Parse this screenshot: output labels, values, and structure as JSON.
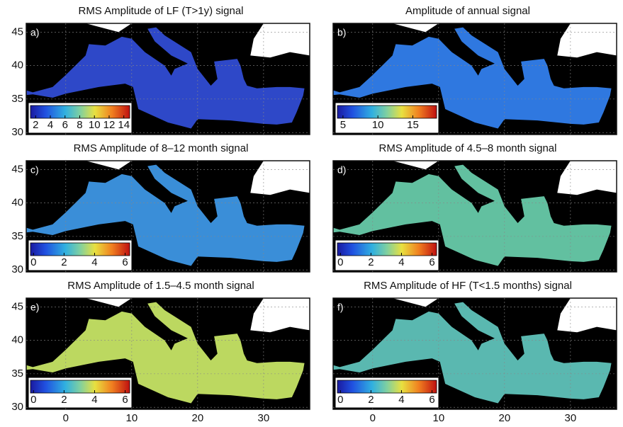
{
  "panels": [
    {
      "label": "a)",
      "title": "RMS Amplitude of LF (T>1y) signal",
      "color": "#2e48c8",
      "colorbar": {
        "lim": [
          1.3,
          14.8
        ],
        "ticks": [
          2,
          4,
          6,
          8,
          10,
          12,
          14
        ]
      }
    },
    {
      "label": "b)",
      "title": "Amplitude of annual signal",
      "color": "#2f78e0",
      "colorbar": {
        "lim": [
          4.2,
          18.4
        ],
        "ticks": [
          5,
          10,
          15
        ]
      }
    },
    {
      "label": "c)",
      "title": "RMS Amplitude of 8–12 month signal",
      "color": "#3a8ed8",
      "colorbar": {
        "lim": [
          -0.2,
          6.3
        ],
        "ticks": [
          0,
          2,
          4,
          6
        ]
      }
    },
    {
      "label": "d)",
      "title": "RMS Amplitude of 4.5–8 month signal",
      "color": "#62c0a0",
      "colorbar": {
        "lim": [
          -0.2,
          6.3
        ],
        "ticks": [
          0,
          2,
          4,
          6
        ]
      }
    },
    {
      "label": "e)",
      "title": "RMS Amplitude of 1.5–4.5 month signal",
      "color": "#bcd860",
      "colorbar": {
        "lim": [
          -0.2,
          6.3
        ],
        "ticks": [
          0,
          2,
          4,
          6
        ]
      }
    },
    {
      "label": "f)",
      "title": "RMS Amplitude of HF (T<1.5 months) signal",
      "color": "#5ab8b0",
      "colorbar": {
        "lim": [
          -0.2,
          6.3
        ],
        "ticks": [
          0,
          2,
          4,
          6
        ]
      }
    }
  ],
  "x_axis": {
    "lim": [
      -6,
      37
    ],
    "ticks": [
      0,
      10,
      20,
      30
    ]
  },
  "y_axis": {
    "lim": [
      29.7,
      46.3
    ],
    "ticks": [
      30,
      35,
      40,
      45
    ]
  }
}
